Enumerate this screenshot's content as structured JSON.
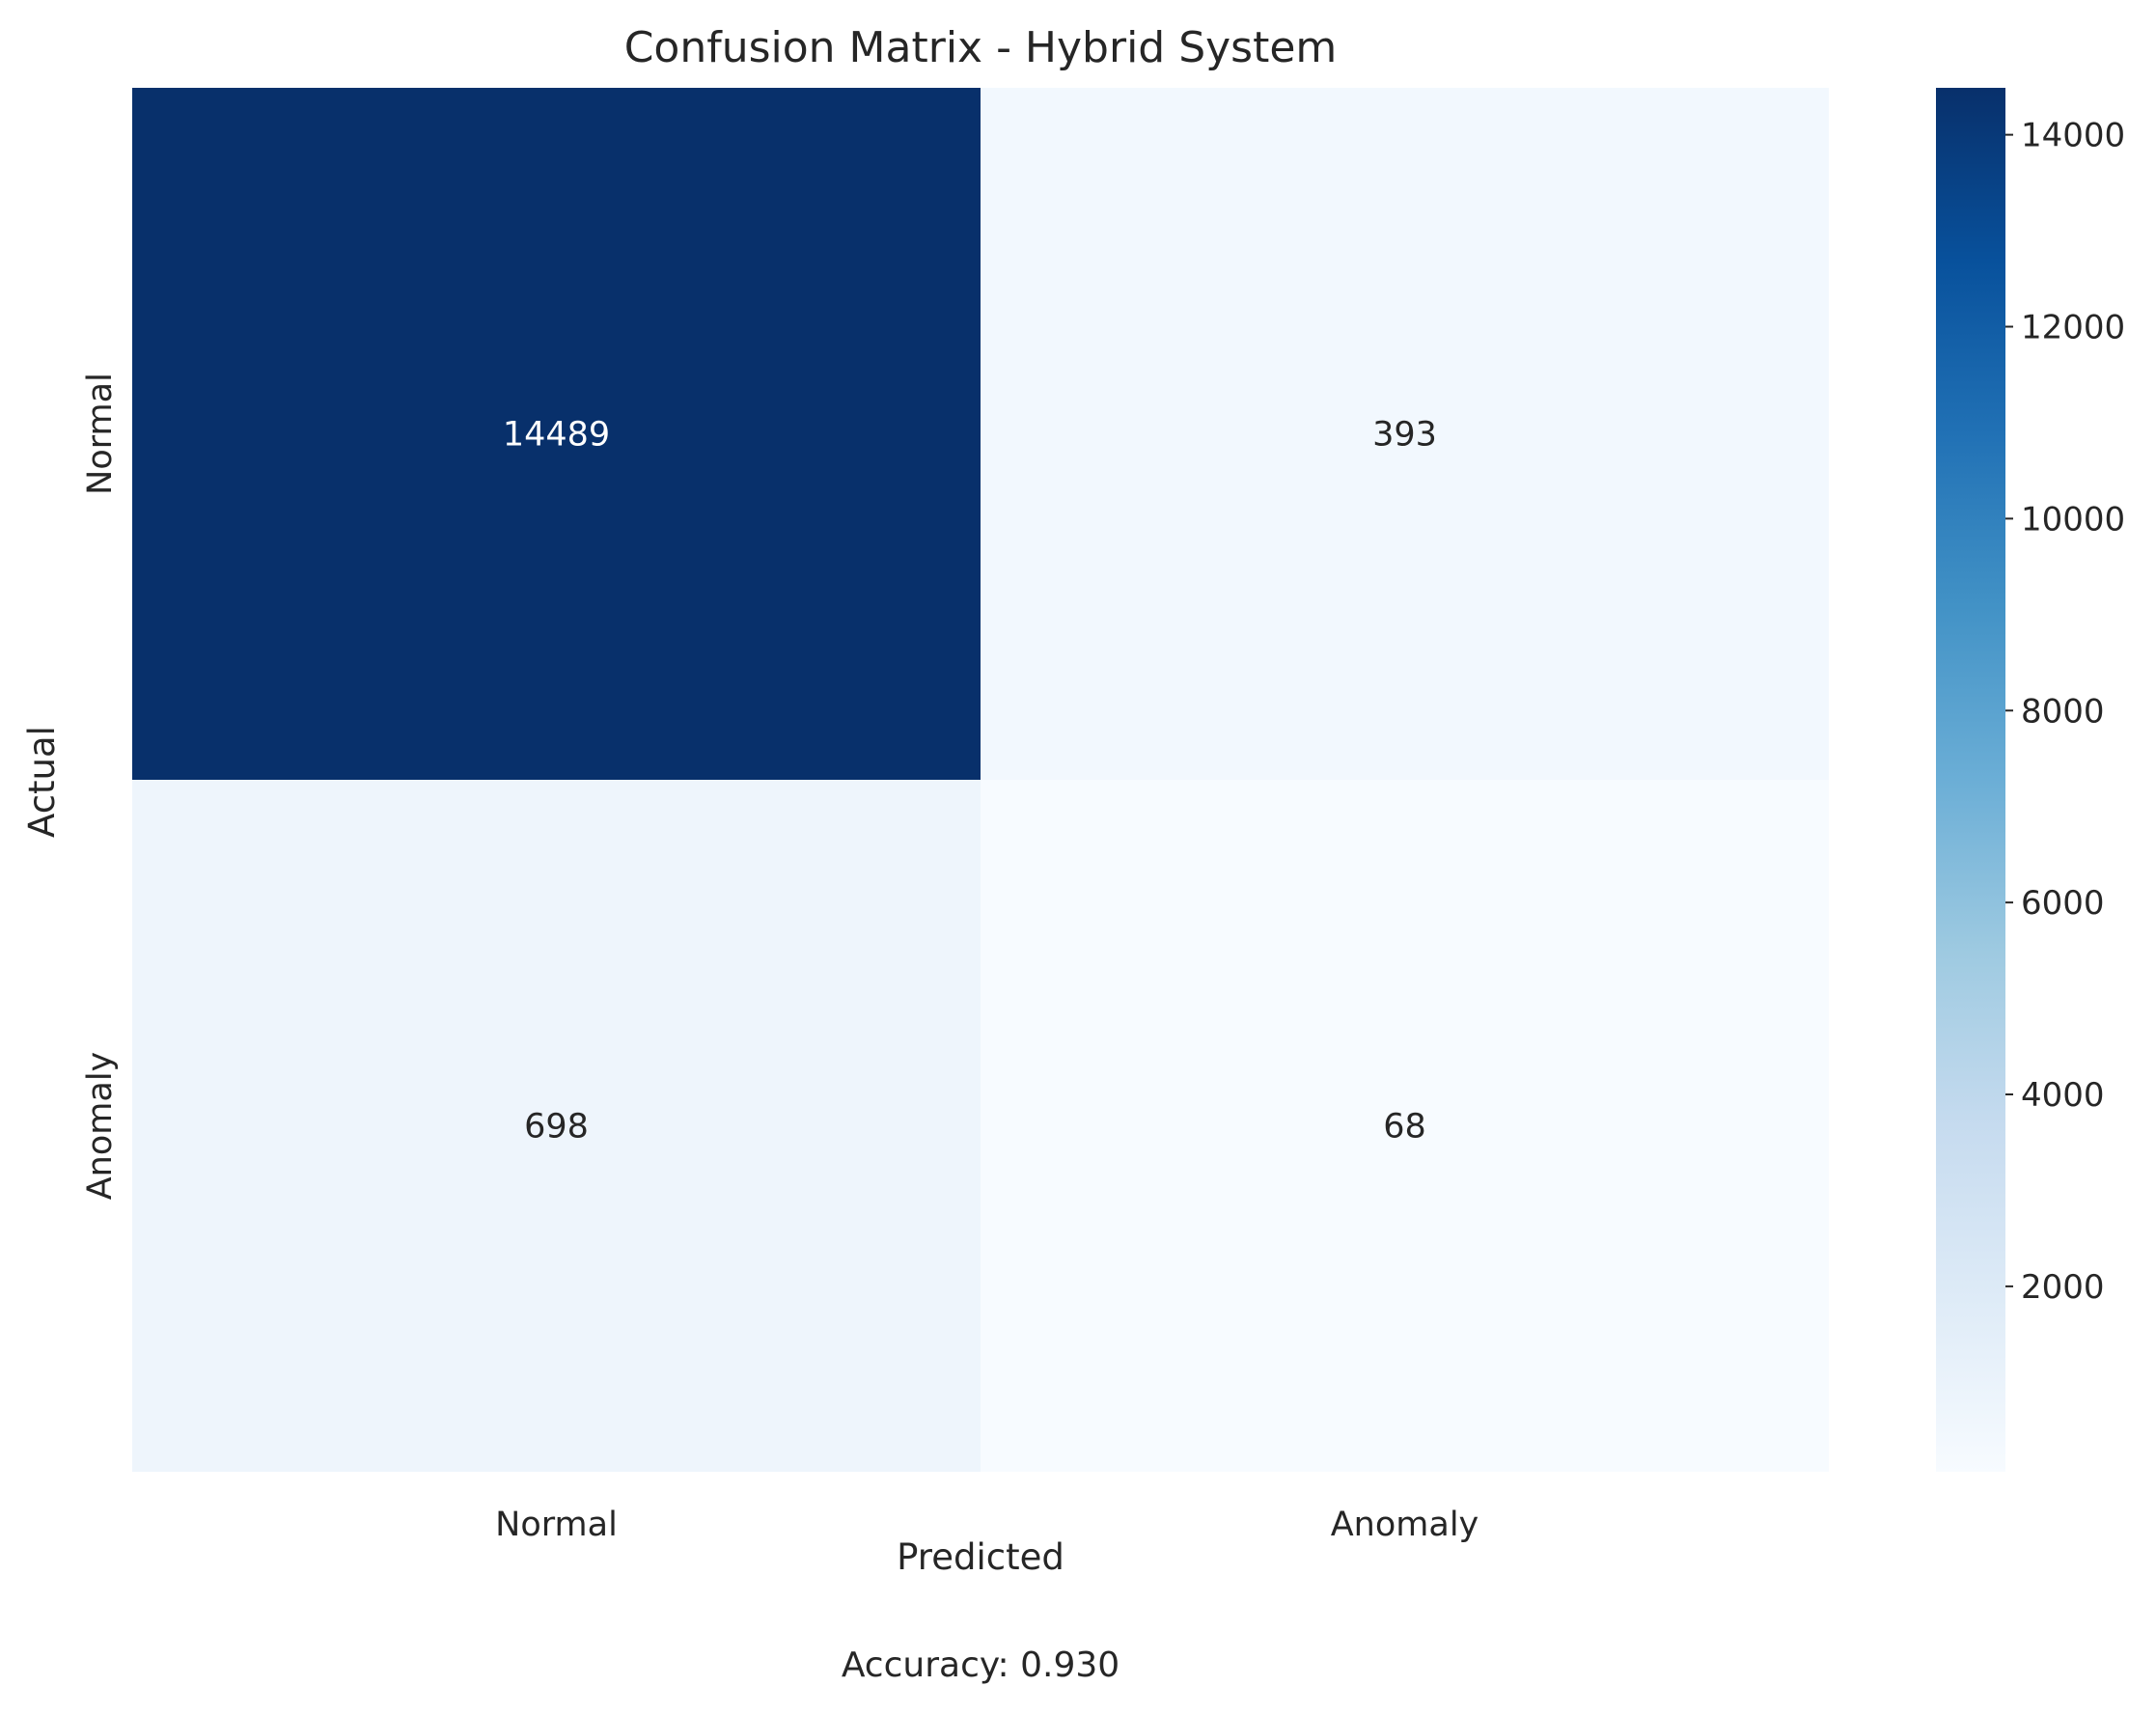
{
  "chart_data": {
    "type": "heatmap",
    "title": "Confusion Matrix - Hybrid System",
    "xlabel": "Predicted",
    "ylabel": "Actual",
    "x_categories": [
      "Normal",
      "Anomaly"
    ],
    "y_categories": [
      "Normal",
      "Anomaly"
    ],
    "values": [
      [
        14489,
        393
      ],
      [
        698,
        68
      ]
    ],
    "colormap": "Blues",
    "colorbar": {
      "range": [
        68,
        14489
      ],
      "ticks": [
        2000,
        4000,
        6000,
        8000,
        10000,
        12000,
        14000
      ]
    },
    "annotation": "Accuracy: 0.930",
    "grid": false,
    "legend": "colorbar-right"
  }
}
